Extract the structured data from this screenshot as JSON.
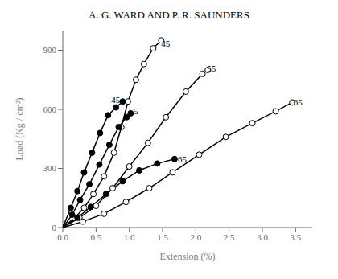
{
  "chart_data": {
    "type": "line",
    "title": "A. G. WARD AND P. R. SAUNDERS",
    "xlabel": "Extension (%)",
    "ylabel": "Load (Kg / cm²)",
    "xlim": [
      0,
      3.75
    ],
    "ylim": [
      0,
      1000
    ],
    "xticks": [
      {
        "value": 0,
        "label": "0.0"
      },
      0.5,
      {
        "value": 1.0,
        "label": "1.0"
      },
      1.5,
      {
        "value": 2.0,
        "label": "2.0"
      },
      2.5,
      {
        "value": 3.0,
        "label": "3.0"
      },
      3.5
    ],
    "yticks": [
      0,
      300,
      600,
      900
    ],
    "series": [
      {
        "marker": "open",
        "color": "black",
        "x": [
          0,
          0.18,
          0.32,
          0.46,
          0.62,
          0.77,
          0.88,
          0.98,
          1.1,
          1.22,
          1.36,
          1.48
        ],
        "values": [
          0,
          50,
          100,
          170,
          260,
          380,
          510,
          640,
          750,
          830,
          910,
          950
        ]
      },
      {
        "marker": "open",
        "color": "black",
        "x": [
          0,
          0.25,
          0.5,
          0.75,
          1.0,
          1.28,
          1.55,
          1.85,
          2.1,
          2.18
        ],
        "values": [
          0,
          50,
          110,
          200,
          310,
          430,
          560,
          690,
          780,
          800
        ]
      },
      {
        "marker": "open",
        "color": "black",
        "x": [
          0,
          0.3,
          0.62,
          0.95,
          1.3,
          1.65,
          2.05,
          2.45,
          2.85,
          3.2,
          3.45
        ],
        "values": [
          0,
          30,
          70,
          130,
          200,
          280,
          370,
          460,
          530,
          590,
          635
        ]
      },
      {
        "marker": "filled",
        "color": "black",
        "x": [
          0,
          0.12,
          0.22,
          0.32,
          0.44,
          0.56,
          0.68,
          0.8,
          0.9
        ],
        "values": [
          0,
          100,
          185,
          280,
          380,
          480,
          570,
          610,
          640
        ]
      },
      {
        "marker": "filled",
        "color": "black",
        "x": [
          0,
          0.14,
          0.26,
          0.4,
          0.55,
          0.7,
          0.84,
          0.96,
          1.02
        ],
        "values": [
          0,
          65,
          140,
          220,
          320,
          420,
          510,
          560,
          580
        ]
      },
      {
        "marker": "filled",
        "color": "black",
        "x": [
          0,
          0.22,
          0.42,
          0.65,
          0.9,
          1.15,
          1.42,
          1.68
        ],
        "values": [
          0,
          50,
          105,
          170,
          235,
          290,
          325,
          348
        ]
      }
    ],
    "annotations": [
      {
        "text": "45",
        "x": 1.43,
        "y": 935
      },
      {
        "text": "55",
        "x": 2.12,
        "y": 808
      },
      {
        "text": "65",
        "x": 3.42,
        "y": 638
      },
      {
        "text": "45",
        "x": 0.68,
        "y": 648
      },
      {
        "text": "55",
        "x": 0.95,
        "y": 590
      },
      {
        "text": "65",
        "x": 1.68,
        "y": 348
      }
    ]
  }
}
